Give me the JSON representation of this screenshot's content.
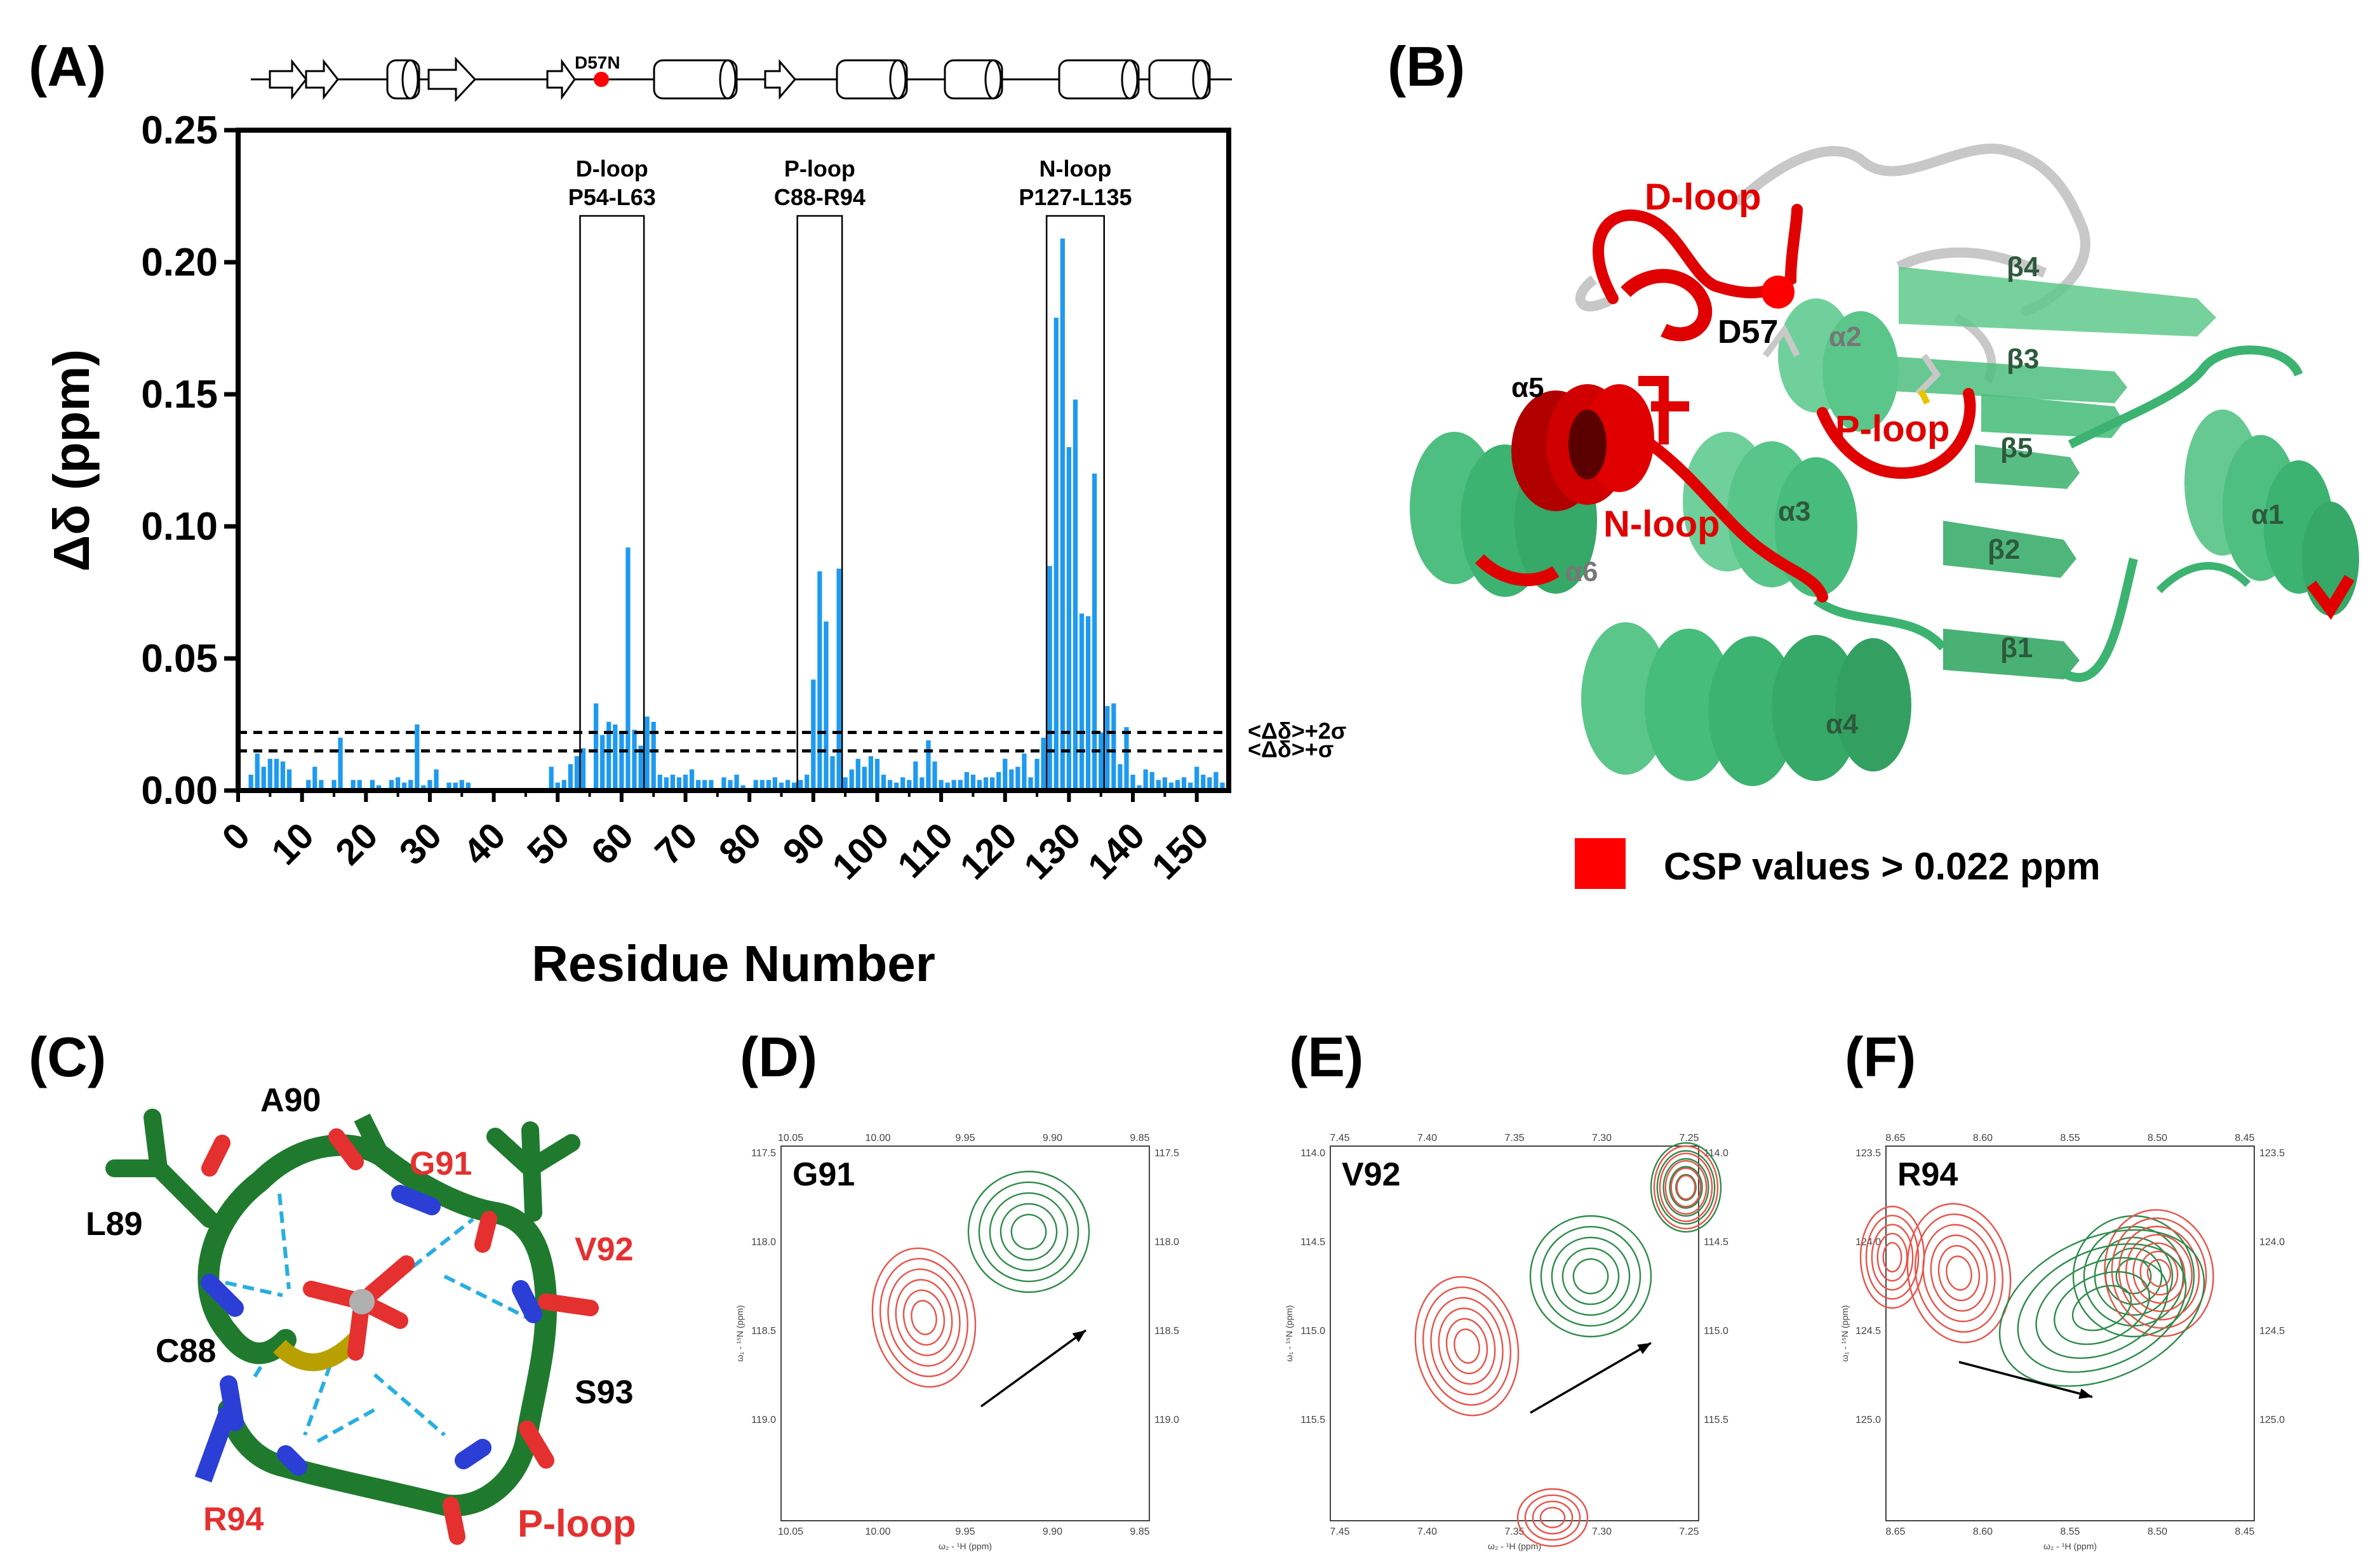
{
  "chart_data": {
    "type": "bar",
    "panel": "(A)",
    "xlabel": "Residue Number",
    "ylabel": "Δδ (ppm)",
    "xlim": [
      0,
      155
    ],
    "ylim": [
      0,
      0.25
    ],
    "yticks": [
      "0.00",
      "0.05",
      "0.10",
      "0.15",
      "0.20",
      "0.25"
    ],
    "xticks": [
      "0",
      "10",
      "20",
      "30",
      "40",
      "50",
      "60",
      "70",
      "80",
      "90",
      "100",
      "110",
      "120",
      "130",
      "140",
      "150"
    ],
    "color": "#1e9af0",
    "series": [
      {
        "residues": [
          2,
          3,
          4,
          5,
          6,
          7,
          8,
          11,
          12,
          13,
          15,
          16,
          18,
          19,
          21,
          22,
          24,
          25,
          26,
          27,
          28,
          29,
          30,
          31,
          33,
          34,
          35,
          36,
          49,
          50,
          51,
          52,
          53,
          54,
          56,
          57,
          58,
          59,
          60,
          61,
          62,
          63,
          64,
          65,
          66,
          67,
          68,
          69,
          70,
          71,
          72,
          73,
          74,
          76,
          77,
          78,
          79,
          81,
          82,
          83,
          84,
          85,
          86,
          87,
          88,
          89,
          90,
          91,
          92,
          93,
          94,
          95,
          96,
          97,
          98,
          99,
          100,
          101,
          102,
          103,
          104,
          105,
          106,
          107,
          108,
          109,
          110,
          111,
          112,
          113,
          114,
          115,
          116,
          117,
          118,
          119,
          120,
          121,
          122,
          123,
          124,
          125,
          126,
          127,
          128,
          129,
          130,
          131,
          132,
          133,
          134,
          135,
          136,
          137,
          138,
          139,
          140,
          141,
          142,
          143,
          144,
          145,
          146,
          147,
          148,
          149,
          150,
          151,
          152,
          153,
          154
        ],
        "values": [
          0.006,
          0.014,
          0.009,
          0.012,
          0.012,
          0.011,
          0.008,
          0.004,
          0.009,
          0.004,
          0.004,
          0.02,
          0.004,
          0.004,
          0.004,
          0.002,
          0.004,
          0.005,
          0.003,
          0.004,
          0.025,
          0.002,
          0.004,
          0.008,
          0.003,
          0.003,
          0.004,
          0.003,
          0.009,
          0.003,
          0.004,
          0.01,
          0.013,
          0.016,
          0.033,
          0.021,
          0.026,
          0.025,
          0.022,
          0.092,
          0.023,
          0.017,
          0.028,
          0.026,
          0.006,
          0.005,
          0.006,
          0.005,
          0.006,
          0.008,
          0.004,
          0.004,
          0.004,
          0.005,
          0.004,
          0.006,
          0.002,
          0.004,
          0.004,
          0.004,
          0.005,
          0.003,
          0.004,
          0.003,
          0.004,
          0.006,
          0.042,
          0.083,
          0.064,
          0.013,
          0.084,
          0.005,
          0.008,
          0.012,
          0.009,
          0.013,
          0.012,
          0.006,
          0.004,
          0.003,
          0.005,
          0.004,
          0.011,
          0.005,
          0.019,
          0.011,
          0.004,
          0.003,
          0.004,
          0.004,
          0.007,
          0.006,
          0.004,
          0.005,
          0.005,
          0.007,
          0.012,
          0.008,
          0.009,
          0.014,
          0.005,
          0.012,
          0.02,
          0.085,
          0.179,
          0.209,
          0.13,
          0.148,
          0.067,
          0.066,
          0.12,
          0.022,
          0.032,
          0.033,
          0.01,
          0.024,
          0.006,
          0.002,
          0.008,
          0.007,
          0.004,
          0.005,
          0.003,
          0.004,
          0.005,
          0.003,
          0.009,
          0.006,
          0.005,
          0.007,
          0.003
        ]
      }
    ],
    "thresholds": [
      {
        "label": "<Δδ>+2σ",
        "value": 0.022
      },
      {
        "label": "<Δδ>+σ",
        "value": 0.015
      }
    ],
    "regions": [
      {
        "name": "D-loop",
        "range": "P54-L63",
        "start": 54,
        "end": 63
      },
      {
        "name": "P-loop",
        "range": "C88-R94",
        "start": 88,
        "end": 94
      },
      {
        "name": "N-loop",
        "range": "P127-L135",
        "start": 127,
        "end": 135
      }
    ],
    "topology_marker": "D57N"
  },
  "panels": {
    "a": "(A)",
    "b": "(B)",
    "c": "(C)",
    "d": "(D)",
    "e": "(E)",
    "f": "(F)"
  },
  "structure": {
    "labels": {
      "dloop": "D-loop",
      "d57": "D57",
      "ploop": "P-loop",
      "nloop": "N-loop",
      "a1": "α1",
      "a2": "α2",
      "a3": "α3",
      "a4": "α4",
      "a5": "α5",
      "a6": "α6",
      "b1": "β1",
      "b2": "β2",
      "b3": "β3",
      "b4": "β4",
      "b5": "β5"
    },
    "legend": "CSP values > 0.022 ppm",
    "legend_color": "#ff0000",
    "helix_color": "#3cb371",
    "highlight_color": "#e00000",
    "loop_color": "#c8c8c8"
  },
  "ploop_stick": {
    "labels": {
      "a90": "A90",
      "g91": "G91",
      "l89": "L89",
      "v92": "V92",
      "c88": "C88",
      "s93": "S93",
      "r94": "R94",
      "ploop": "P-loop"
    },
    "carbon_color": "#1f7a2e",
    "nitrogen_color": "#2b3fd6",
    "oxygen_color": "#e53030",
    "hbond_color": "#29aee0"
  },
  "nmr_panels": [
    {
      "residue": "G91",
      "x_ticks": [
        "10.05",
        "10.00",
        "9.95",
        "9.90",
        "9.85"
      ],
      "y_ticks": [
        "117.5",
        "118.0",
        "118.5",
        "119.0"
      ],
      "x_axis": "ω₂ - ¹H (ppm)",
      "y_axis": "ω₁ - ¹⁵N (ppm)"
    },
    {
      "residue": "V92",
      "x_ticks": [
        "7.45",
        "7.40",
        "7.35",
        "7.30",
        "7.25"
      ],
      "y_ticks": [
        "114.0",
        "114.5",
        "115.0",
        "115.5"
      ],
      "x_axis": "ω₂ - ¹H (ppm)",
      "y_axis": "ω₁ - ¹⁵N (ppm)"
    },
    {
      "residue": "R94",
      "x_ticks": [
        "8.65",
        "8.60",
        "8.55",
        "8.50",
        "8.45"
      ],
      "y_ticks": [
        "123.5",
        "124.0",
        "124.5",
        "125.0"
      ],
      "x_axis": "ω₂ - ¹H (ppm)",
      "y_axis": "ω₁ - ¹⁵N (ppm)"
    }
  ],
  "nmr_colors": {
    "reference": "#e8534a",
    "bound": "#2e8b4a"
  }
}
